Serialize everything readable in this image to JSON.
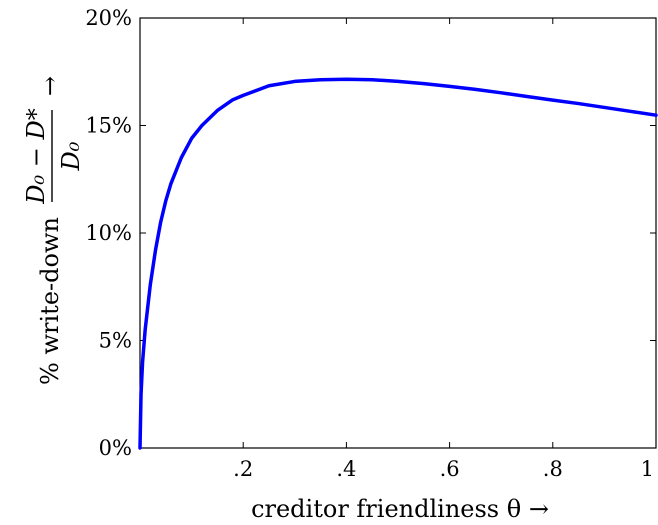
{
  "chart_data": {
    "type": "line",
    "xlabel": "creditor friendliness θ →",
    "ylabel": {
      "prefix": "% write-down",
      "numerator": "D₀ − D*",
      "denominator": "D₀",
      "arrow": "→"
    },
    "xlim": [
      0,
      1
    ],
    "ylim": [
      0,
      20
    ],
    "x_ticks": [
      {
        "value": 0.2,
        "label": ".2"
      },
      {
        "value": 0.4,
        "label": ".4"
      },
      {
        "value": 0.6,
        "label": ".6"
      },
      {
        "value": 0.8,
        "label": ".8"
      },
      {
        "value": 1.0,
        "label": "1"
      }
    ],
    "y_ticks": [
      {
        "value": 0,
        "label": "0%"
      },
      {
        "value": 5,
        "label": "5%"
      },
      {
        "value": 10,
        "label": "10%"
      },
      {
        "value": 15,
        "label": "15%"
      },
      {
        "value": 20,
        "label": "20%"
      }
    ],
    "grid": false,
    "series": [
      {
        "color": "#0000ff",
        "x": [
          0.0,
          0.002,
          0.005,
          0.01,
          0.02,
          0.03,
          0.04,
          0.05,
          0.06,
          0.08,
          0.1,
          0.12,
          0.15,
          0.18,
          0.2,
          0.25,
          0.3,
          0.35,
          0.4,
          0.45,
          0.5,
          0.55,
          0.6,
          0.65,
          0.7,
          0.75,
          0.8,
          0.85,
          0.9,
          0.95,
          1.0
        ],
        "y": [
          0.0,
          2.5,
          4.0,
          5.5,
          7.6,
          9.2,
          10.5,
          11.5,
          12.3,
          13.5,
          14.4,
          15.0,
          15.7,
          16.2,
          16.4,
          16.85,
          17.05,
          17.13,
          17.15,
          17.13,
          17.05,
          16.95,
          16.82,
          16.68,
          16.52,
          16.35,
          16.18,
          16.02,
          15.84,
          15.66,
          15.48
        ]
      }
    ]
  }
}
